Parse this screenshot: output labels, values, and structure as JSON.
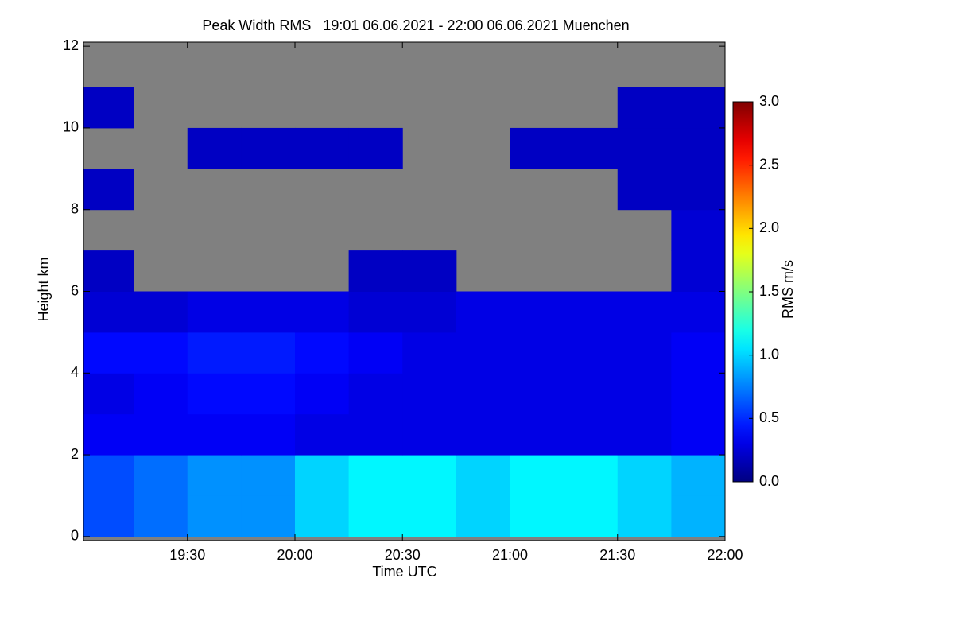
{
  "chart_data": {
    "type": "heatmap",
    "title": "Peak Width RMS   19:01 06.06.2021 - 22:00 06.06.2021 Muenchen",
    "xlabel": "Time UTC",
    "ylabel": "Height km",
    "colorbar_label": "RMS m/s",
    "xlim": [
      19.0167,
      22.0
    ],
    "ylim": [
      -0.1,
      12.1
    ],
    "xticks": [
      {
        "value": 19.5,
        "label": "19:30"
      },
      {
        "value": 20.0,
        "label": "20:00"
      },
      {
        "value": 20.5,
        "label": "20:30"
      },
      {
        "value": 21.0,
        "label": "21:00"
      },
      {
        "value": 21.5,
        "label": "21:30"
      },
      {
        "value": 22.0,
        "label": "22:00"
      }
    ],
    "yticks": [
      0,
      2,
      4,
      6,
      8,
      10,
      12
    ],
    "clim": [
      0,
      3
    ],
    "cticks": [
      {
        "value": 0,
        "label": "0.0"
      },
      0.5,
      {
        "value": 1,
        "label": "1.0"
      },
      1.5,
      {
        "value": 2,
        "label": "2.0"
      },
      2.5,
      {
        "value": 3,
        "label": "3.0"
      }
    ],
    "colormap": "jet",
    "nan_color": "#808080",
    "xbins": [
      19.0167,
      19.25,
      19.5,
      19.75,
      20.0,
      20.25,
      20.5,
      20.75,
      21.0,
      21.25,
      21.5,
      21.75,
      22.0
    ],
    "ybins": [
      0,
      1,
      2,
      3,
      4,
      5,
      6,
      7,
      8,
      9,
      10,
      11,
      12
    ],
    "z": [
      [
        0.6,
        0.7,
        0.8,
        0.8,
        1.0,
        1.1,
        1.1,
        1.0,
        1.1,
        1.1,
        1.0,
        0.9
      ],
      [
        0.6,
        0.7,
        0.8,
        0.8,
        1.0,
        1.1,
        1.1,
        1.0,
        1.1,
        1.1,
        1.0,
        0.9
      ],
      [
        0.35,
        0.35,
        0.35,
        0.35,
        0.3,
        0.3,
        0.3,
        0.3,
        0.3,
        0.3,
        0.3,
        0.35
      ],
      [
        0.3,
        0.35,
        0.4,
        0.4,
        0.35,
        0.3,
        0.3,
        0.3,
        0.3,
        0.3,
        0.3,
        0.35
      ],
      [
        0.4,
        0.4,
        0.45,
        0.45,
        0.4,
        0.35,
        0.3,
        0.3,
        0.3,
        0.3,
        0.3,
        0.35
      ],
      [
        0.25,
        0.25,
        0.3,
        0.3,
        0.3,
        0.25,
        0.25,
        0.3,
        0.3,
        0.3,
        0.3,
        0.3
      ],
      [
        0.2,
        null,
        null,
        null,
        null,
        0.2,
        0.2,
        null,
        null,
        null,
        null,
        0.25
      ],
      [
        null,
        null,
        null,
        null,
        null,
        null,
        null,
        null,
        null,
        null,
        null,
        0.25
      ],
      [
        0.2,
        null,
        null,
        null,
        null,
        null,
        null,
        null,
        null,
        null,
        0.2,
        0.2
      ],
      [
        null,
        null,
        0.2,
        0.2,
        0.2,
        0.2,
        null,
        null,
        0.2,
        0.2,
        0.2,
        0.2
      ],
      [
        0.2,
        null,
        null,
        null,
        null,
        null,
        null,
        null,
        null,
        null,
        0.2,
        0.2
      ],
      [
        null,
        null,
        null,
        null,
        null,
        null,
        null,
        null,
        null,
        null,
        null,
        null
      ]
    ]
  }
}
